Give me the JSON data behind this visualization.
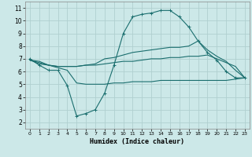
{
  "xlabel": "Humidex (Indice chaleur)",
  "background_color": "#cce8e8",
  "grid_color": "#b0d0d0",
  "line_color": "#1a6e6e",
  "xlim": [
    -0.5,
    23.5
  ],
  "ylim": [
    1.5,
    11.5
  ],
  "xticks": [
    0,
    1,
    2,
    3,
    4,
    5,
    6,
    7,
    8,
    9,
    10,
    11,
    12,
    13,
    14,
    15,
    16,
    17,
    18,
    19,
    20,
    21,
    22,
    23
  ],
  "yticks": [
    2,
    3,
    4,
    5,
    6,
    7,
    8,
    9,
    10,
    11
  ],
  "line1_x": [
    0,
    1,
    2,
    3,
    4,
    5,
    6,
    7,
    8,
    9,
    10,
    11,
    12,
    13,
    14,
    15,
    16,
    17,
    18,
    19,
    20,
    21,
    22,
    23
  ],
  "line1_y": [
    7.0,
    6.5,
    6.1,
    6.1,
    4.9,
    2.5,
    2.7,
    3.0,
    4.3,
    6.5,
    9.0,
    10.3,
    10.5,
    10.6,
    10.8,
    10.8,
    10.3,
    9.5,
    8.4,
    7.5,
    6.9,
    6.0,
    5.5,
    5.5
  ],
  "line2_x": [
    0,
    1,
    2,
    3,
    4,
    5,
    6,
    7,
    8,
    9,
    10,
    11,
    12,
    13,
    14,
    15,
    16,
    17,
    18,
    19,
    20,
    21,
    22,
    23
  ],
  "line2_y": [
    6.9,
    6.6,
    6.5,
    6.4,
    6.4,
    6.4,
    6.5,
    6.6,
    7.0,
    7.1,
    7.3,
    7.5,
    7.6,
    7.7,
    7.8,
    7.9,
    7.9,
    8.0,
    8.4,
    7.7,
    7.2,
    6.8,
    6.1,
    5.5
  ],
  "line3_x": [
    0,
    1,
    2,
    3,
    4,
    5,
    6,
    7,
    8,
    9,
    10,
    11,
    12,
    13,
    14,
    15,
    16,
    17,
    18,
    19,
    20,
    21,
    22,
    23
  ],
  "line3_y": [
    6.9,
    6.7,
    6.5,
    6.4,
    6.4,
    6.4,
    6.5,
    6.5,
    6.6,
    6.7,
    6.8,
    6.8,
    6.9,
    7.0,
    7.0,
    7.1,
    7.1,
    7.2,
    7.2,
    7.3,
    7.0,
    6.7,
    6.4,
    5.5
  ],
  "line4_x": [
    0,
    1,
    2,
    3,
    4,
    5,
    6,
    7,
    8,
    9,
    10,
    11,
    12,
    13,
    14,
    15,
    16,
    17,
    18,
    19,
    20,
    21,
    22,
    23
  ],
  "line4_y": [
    6.9,
    6.8,
    6.5,
    6.3,
    6.1,
    5.1,
    5.0,
    5.0,
    5.0,
    5.1,
    5.1,
    5.2,
    5.2,
    5.2,
    5.3,
    5.3,
    5.3,
    5.3,
    5.3,
    5.3,
    5.3,
    5.3,
    5.4,
    5.5
  ]
}
